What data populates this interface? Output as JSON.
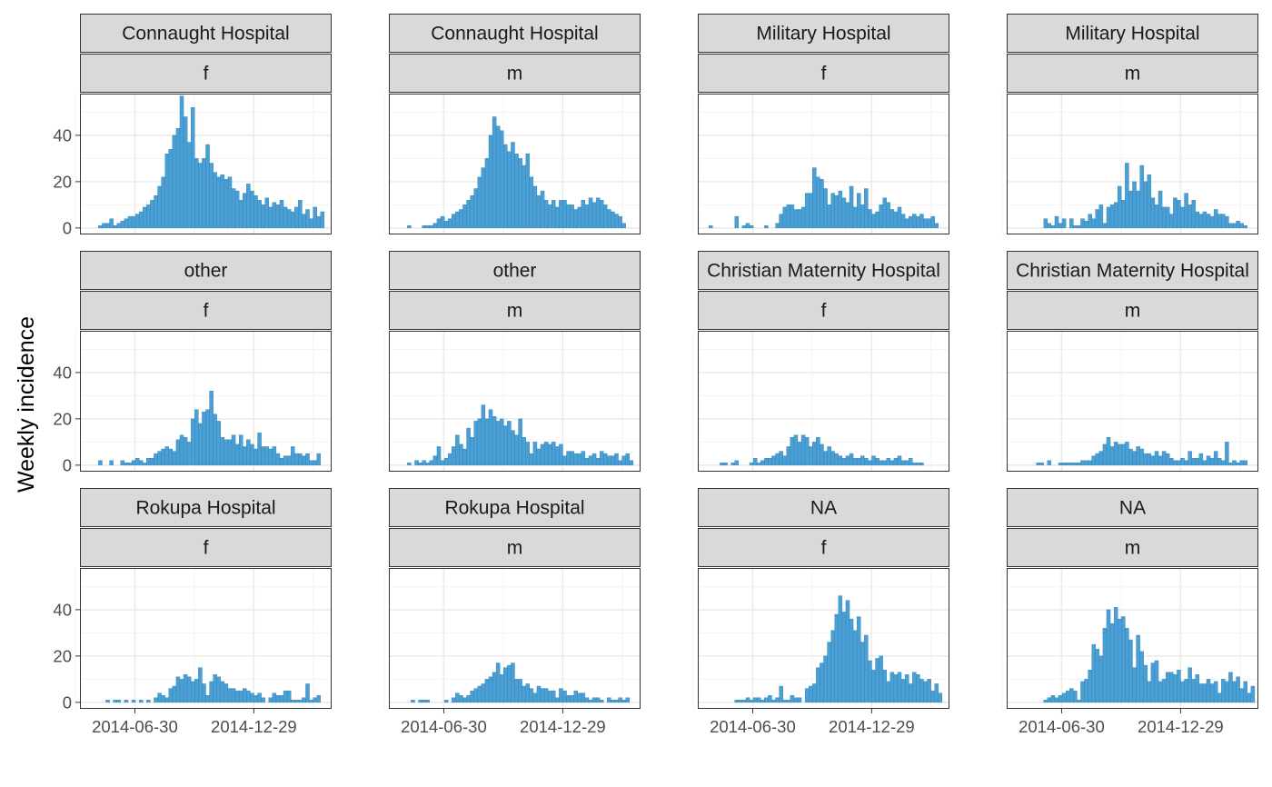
{
  "chart_data": {
    "type": "bar",
    "ylabel": "Weekly incidence",
    "xlabel": "",
    "ylim": [
      -2.8,
      58
    ],
    "yticks": [
      0,
      20,
      40
    ],
    "x_start": "2014-04-07",
    "x_range": [
      "2014-04-07",
      "2015-04-27"
    ],
    "xticks": [
      "2014-06-30",
      "2014-12-29"
    ],
    "bar_color": "#4a9fd4",
    "bar_stroke": "#2f7fb3",
    "grid": true,
    "panels": [
      {
        "hospital": "Connaught Hospital",
        "gender": "f",
        "values": [
          0,
          0,
          0,
          0,
          0,
          1,
          2,
          2,
          4,
          1,
          2,
          3,
          4,
          5,
          5,
          6,
          7,
          9,
          10,
          12,
          14,
          18,
          22,
          32,
          34,
          40,
          43,
          57,
          48,
          37,
          52,
          30,
          28,
          30,
          36,
          28,
          24,
          22,
          23,
          21,
          22,
          17,
          16,
          12,
          15,
          19,
          16,
          14,
          12,
          10,
          13,
          9,
          11,
          10,
          12,
          9,
          8,
          7,
          9,
          12,
          6,
          8,
          4,
          9,
          5,
          7,
          0,
          0
        ]
      },
      {
        "hospital": "Connaught Hospital",
        "gender": "m",
        "values": [
          0,
          0,
          0,
          0,
          0,
          1,
          0,
          0,
          0,
          1,
          1,
          1,
          2,
          4,
          5,
          3,
          4,
          6,
          7,
          8,
          10,
          12,
          14,
          17,
          22,
          26,
          30,
          40,
          48,
          44,
          42,
          36,
          33,
          37,
          32,
          30,
          27,
          32,
          22,
          18,
          14,
          16,
          12,
          10,
          12,
          9,
          12,
          12,
          10,
          10,
          8,
          9,
          12,
          10,
          13,
          11,
          13,
          12,
          10,
          8,
          7,
          6,
          5,
          2,
          0,
          0,
          0,
          0
        ]
      },
      {
        "hospital": "Military Hospital",
        "gender": "f",
        "values": [
          0,
          0,
          0,
          1,
          0,
          0,
          0,
          0,
          0,
          0,
          5,
          0,
          1,
          2,
          1,
          0,
          0,
          0,
          1,
          0,
          0,
          2,
          6,
          9,
          10,
          10,
          8,
          8,
          9,
          15,
          15,
          26,
          22,
          21,
          17,
          10,
          15,
          14,
          16,
          13,
          11,
          18,
          9,
          15,
          10,
          17,
          8,
          6,
          7,
          10,
          13,
          11,
          8,
          7,
          9,
          6,
          4,
          5,
          6,
          5,
          6,
          4,
          4,
          5,
          2,
          0,
          0,
          0
        ]
      },
      {
        "hospital": "Military Hospital",
        "gender": "m",
        "values": [
          0,
          0,
          0,
          0,
          0,
          0,
          0,
          0,
          0,
          0,
          4,
          2,
          1,
          5,
          2,
          4,
          0,
          4,
          1,
          1,
          4,
          3,
          6,
          4,
          8,
          10,
          2,
          9,
          10,
          11,
          18,
          12,
          28,
          16,
          20,
          16,
          27,
          20,
          23,
          13,
          10,
          16,
          9,
          9,
          6,
          13,
          12,
          9,
          15,
          10,
          12,
          7,
          6,
          7,
          6,
          5,
          8,
          6,
          6,
          5,
          2,
          2,
          3,
          2,
          1,
          0,
          0,
          0
        ]
      },
      {
        "hospital": "other",
        "gender": "f",
        "values": [
          0,
          0,
          0,
          0,
          0,
          2,
          0,
          0,
          2,
          0,
          0,
          2,
          1,
          1,
          2,
          3,
          2,
          1,
          3,
          3,
          5,
          6,
          7,
          8,
          7,
          6,
          11,
          13,
          12,
          10,
          20,
          24,
          18,
          23,
          24,
          32,
          22,
          19,
          12,
          11,
          11,
          13,
          9,
          13,
          8,
          11,
          9,
          7,
          14,
          8,
          8,
          7,
          8,
          5,
          3,
          4,
          4,
          8,
          5,
          5,
          4,
          5,
          2,
          2,
          5,
          0,
          0,
          0
        ]
      },
      {
        "hospital": "other",
        "gender": "m",
        "values": [
          0,
          0,
          0,
          0,
          0,
          1,
          0,
          2,
          1,
          2,
          1,
          2,
          4,
          8,
          2,
          3,
          5,
          8,
          13,
          9,
          7,
          16,
          12,
          19,
          20,
          26,
          20,
          24,
          21,
          19,
          20,
          17,
          19,
          15,
          13,
          20,
          12,
          10,
          5,
          10,
          7,
          9,
          10,
          9,
          10,
          8,
          9,
          4,
          6,
          6,
          5,
          5,
          6,
          3,
          4,
          5,
          3,
          6,
          5,
          4,
          4,
          5,
          2,
          4,
          5,
          2,
          0,
          0
        ]
      },
      {
        "hospital": "Christian Maternity Hospital",
        "gender": "f",
        "values": [
          0,
          0,
          0,
          0,
          0,
          0,
          1,
          1,
          0,
          1,
          2,
          0,
          0,
          0,
          1,
          3,
          1,
          2,
          3,
          3,
          4,
          5,
          6,
          4,
          8,
          12,
          13,
          10,
          13,
          12,
          8,
          10,
          12,
          9,
          6,
          8,
          6,
          5,
          4,
          3,
          4,
          5,
          3,
          3,
          4,
          3,
          2,
          4,
          3,
          2,
          2,
          3,
          2,
          3,
          4,
          2,
          2,
          3,
          1,
          1,
          1,
          0,
          0,
          0,
          0,
          0,
          0,
          0
        ]
      },
      {
        "hospital": "Christian Maternity Hospital",
        "gender": "m",
        "values": [
          0,
          0,
          0,
          0,
          0,
          0,
          0,
          0,
          1,
          1,
          0,
          2,
          0,
          0,
          1,
          1,
          1,
          1,
          1,
          1,
          2,
          2,
          2,
          4,
          5,
          6,
          9,
          12,
          8,
          10,
          9,
          9,
          10,
          7,
          6,
          8,
          7,
          5,
          5,
          4,
          6,
          4,
          6,
          5,
          3,
          2,
          2,
          3,
          2,
          6,
          3,
          3,
          5,
          2,
          4,
          3,
          6,
          3,
          2,
          10,
          1,
          2,
          1,
          2,
          2,
          0,
          0,
          0
        ]
      },
      {
        "hospital": "Rokupa Hospital",
        "gender": "f",
        "values": [
          0,
          0,
          0,
          0,
          0,
          0,
          0,
          1,
          0,
          1,
          1,
          0,
          1,
          0,
          1,
          0,
          1,
          0,
          1,
          0,
          2,
          4,
          3,
          2,
          6,
          7,
          11,
          10,
          12,
          11,
          9,
          10,
          15,
          8,
          3,
          9,
          12,
          11,
          9,
          8,
          6,
          6,
          5,
          5,
          6,
          5,
          4,
          3,
          4,
          2,
          0,
          2,
          4,
          3,
          3,
          5,
          5,
          1,
          1,
          1,
          2,
          8,
          1,
          2,
          3,
          0,
          0,
          0
        ]
      },
      {
        "hospital": "Rokupa Hospital",
        "gender": "m",
        "values": [
          0,
          0,
          0,
          0,
          0,
          0,
          1,
          0,
          1,
          1,
          1,
          0,
          0,
          0,
          0,
          1,
          0,
          2,
          4,
          3,
          2,
          3,
          5,
          6,
          7,
          8,
          10,
          11,
          13,
          17,
          12,
          15,
          16,
          17,
          10,
          10,
          7,
          8,
          6,
          4,
          7,
          6,
          6,
          5,
          5,
          2,
          6,
          5,
          3,
          3,
          5,
          4,
          4,
          2,
          1,
          2,
          2,
          1,
          0,
          2,
          1,
          1,
          2,
          1,
          2,
          0,
          0,
          0
        ]
      },
      {
        "hospital": "NA",
        "gender": "f",
        "values": [
          0,
          0,
          0,
          0,
          0,
          0,
          0,
          0,
          0,
          0,
          1,
          1,
          1,
          2,
          1,
          2,
          2,
          1,
          2,
          3,
          1,
          2,
          7,
          1,
          1,
          3,
          2,
          2,
          0,
          6,
          7,
          8,
          15,
          17,
          20,
          26,
          31,
          38,
          46,
          39,
          44,
          36,
          31,
          37,
          26,
          29,
          18,
          14,
          19,
          20,
          14,
          9,
          13,
          12,
          13,
          10,
          12,
          8,
          13,
          12,
          10,
          9,
          10,
          5,
          8,
          4,
          0,
          0
        ]
      },
      {
        "hospital": "NA",
        "gender": "m",
        "values": [
          0,
          0,
          0,
          0,
          0,
          0,
          0,
          0,
          0,
          0,
          1,
          2,
          3,
          2,
          3,
          4,
          5,
          6,
          5,
          1,
          9,
          10,
          14,
          25,
          23,
          20,
          32,
          40,
          34,
          41,
          36,
          37,
          32,
          27,
          15,
          29,
          22,
          16,
          9,
          17,
          18,
          9,
          10,
          13,
          13,
          12,
          14,
          9,
          10,
          15,
          10,
          12,
          8,
          8,
          10,
          8,
          9,
          4,
          10,
          9,
          13,
          9,
          11,
          6,
          9,
          4,
          7,
          0
        ]
      }
    ]
  }
}
